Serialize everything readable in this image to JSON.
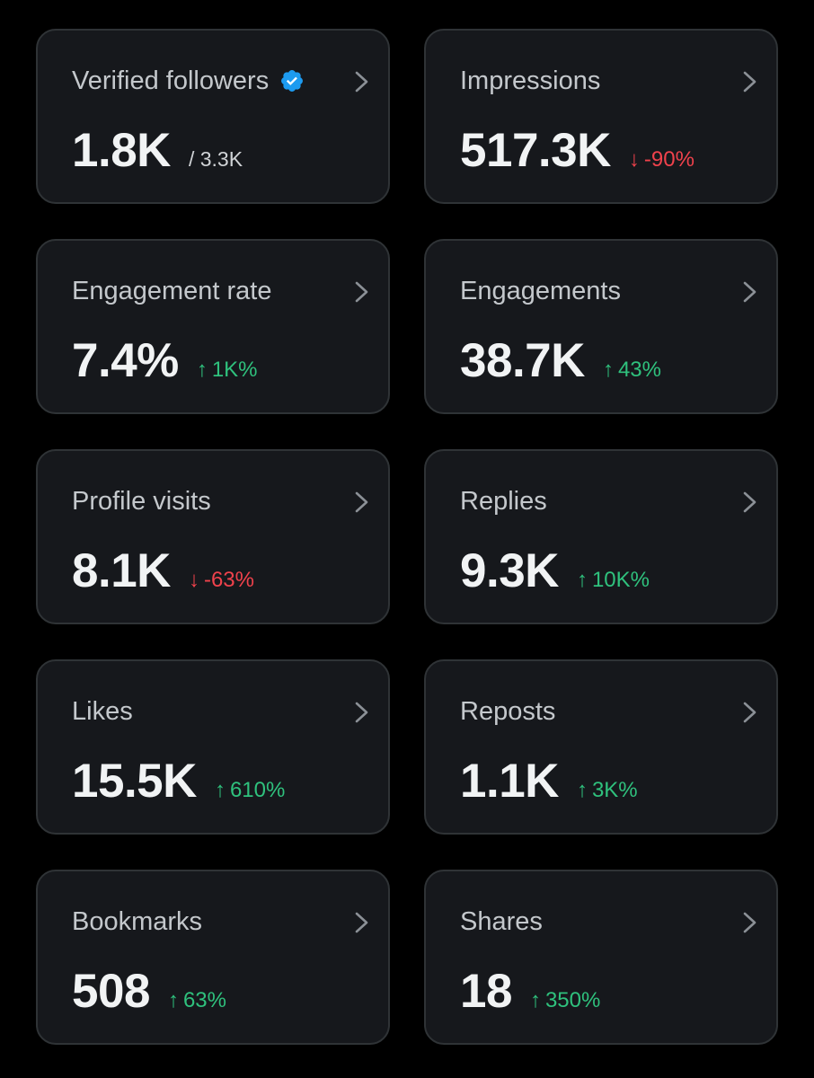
{
  "colors": {
    "background": "#000000",
    "card": "#16181c",
    "card_border": "#2f3336",
    "positive": "#2fc17d",
    "negative": "#f0424c",
    "verified": "#1d9bf0"
  },
  "cards": [
    {
      "title": "Verified followers",
      "value": "1.8K",
      "sub": "/ 3.3K",
      "icon": "verified-badge-icon"
    },
    {
      "title": "Impressions",
      "value": "517.3K",
      "change": {
        "arrow": "↓",
        "text": "-90%",
        "direction": "down"
      }
    },
    {
      "title": "Engagement rate",
      "value": "7.4%",
      "change": {
        "arrow": "↑",
        "text": "1K%",
        "direction": "up"
      }
    },
    {
      "title": "Engagements",
      "value": "38.7K",
      "change": {
        "arrow": "↑",
        "text": "43%",
        "direction": "up"
      }
    },
    {
      "title": "Profile visits",
      "value": "8.1K",
      "change": {
        "arrow": "↓",
        "text": "-63%",
        "direction": "down"
      }
    },
    {
      "title": "Replies",
      "value": "9.3K",
      "change": {
        "arrow": "↑",
        "text": "10K%",
        "direction": "up"
      }
    },
    {
      "title": "Likes",
      "value": "15.5K",
      "change": {
        "arrow": "↑",
        "text": "610%",
        "direction": "up"
      }
    },
    {
      "title": "Reposts",
      "value": "1.1K",
      "change": {
        "arrow": "↑",
        "text": "3K%",
        "direction": "up"
      }
    },
    {
      "title": "Bookmarks",
      "value": "508",
      "change": {
        "arrow": "↑",
        "text": "63%",
        "direction": "up"
      }
    },
    {
      "title": "Shares",
      "value": "18",
      "change": {
        "arrow": "↑",
        "text": "350%",
        "direction": "up"
      }
    }
  ]
}
